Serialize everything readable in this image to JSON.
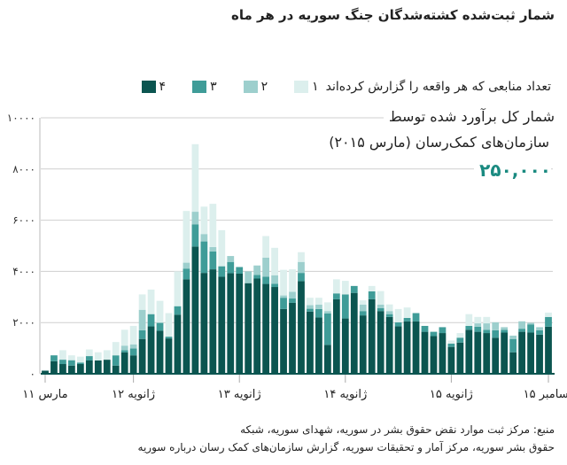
{
  "title": "شمار ثبت‌شده کشته‌شدگان جنگ سوریه در هر ماه",
  "legend": {
    "label": "تعداد منابعی که هر واقعه را گزارش کرده‌اند",
    "items": [
      "۱",
      "۲",
      "۳",
      "۴"
    ]
  },
  "annotation": {
    "line1": "شمار کل برآورد شده توسط",
    "line2": "سازمان‌های کمک‌رسان (مارس ۲۰۱۵)",
    "value": "۲۵۰,۰۰۰"
  },
  "source": {
    "line1": "منبع: مرکز ثبت موارد نقض حقوق بشر در سوریه، شهدای سوریه، شبکه",
    "line2": "حقوق بشر سوریه، مرکز آمار و تحقیقات سوریه، گزارش سازمان‌های کمک رسان درباره سوریه"
  },
  "colors": {
    "s4": "#0b5550",
    "s3": "#3f9c98",
    "s2": "#9dcfcd",
    "s1": "#dcefed",
    "grid": "#cfcfcf"
  },
  "chart_data": {
    "type": "bar",
    "stacked": true,
    "title": "شمار ثبت‌شده کشته‌شدگان جنگ سوریه در هر ماه",
    "ylim": [
      0,
      10000
    ],
    "yticks": [
      0,
      2000,
      4000,
      6000,
      8000,
      10000
    ],
    "ytick_labels": [
      "۰",
      "۲۰۰۰",
      "۴۰۰۰",
      "۶۰۰۰",
      "۸۰۰۰",
      "۱۰۰۰۰"
    ],
    "xticks": [
      {
        "index": 0,
        "label": "مارس ۱۱"
      },
      {
        "index": 10,
        "label": "ژانویه ۱۲"
      },
      {
        "index": 22,
        "label": "ژانویه ۱۳"
      },
      {
        "index": 34,
        "label": "ژانویه ۱۴"
      },
      {
        "index": 46,
        "label": "ژانویه ۱۵"
      },
      {
        "index": 57,
        "label": "دسامبر ۱۵"
      }
    ],
    "legend_position": "top",
    "series": [
      {
        "name": "۴",
        "values": [
          120,
          490,
          380,
          320,
          380,
          520,
          520,
          550,
          320,
          840,
          720,
          1360,
          1850,
          1680,
          1380,
          2310,
          3690,
          4970,
          3940,
          4080,
          3790,
          3930,
          3910,
          3540,
          3720,
          3510,
          3390,
          2530,
          2770,
          3620,
          2430,
          2200,
          1130,
          2910,
          2160,
          3160,
          2280,
          2910,
          2450,
          2220,
          1850,
          2050,
          2050,
          1640,
          1470,
          1590,
          1050,
          1220,
          1720,
          1640,
          1590,
          1410,
          1610,
          840,
          1640,
          1610,
          1530,
          1840
        ]
      },
      {
        "name": "۳",
        "values": [
          0,
          230,
          170,
          210,
          60,
          170,
          0,
          0,
          400,
          80,
          270,
          340,
          480,
          310,
          70,
          330,
          420,
          870,
          1230,
          700,
          410,
          440,
          260,
          0,
          140,
          280,
          130,
          440,
          170,
          320,
          110,
          330,
          1230,
          230,
          940,
          270,
          170,
          310,
          110,
          110,
          160,
          130,
          320,
          230,
          170,
          230,
          130,
          190,
          150,
          200,
          130,
          290,
          110,
          520,
          120,
          320,
          170,
          380
        ]
      },
      {
        "name": "۲",
        "values": [
          0,
          0,
          0,
          0,
          0,
          0,
          0,
          0,
          0,
          180,
          160,
          800,
          0,
          0,
          0,
          0,
          230,
          490,
          290,
          170,
          0,
          230,
          0,
          460,
          370,
          750,
          330,
          90,
          260,
          430,
          140,
          170,
          90,
          0,
          0,
          0,
          250,
          0,
          140,
          120,
          0,
          0,
          0,
          0,
          0,
          0,
          0,
          0,
          0,
          130,
          250,
          310,
          100,
          130,
          290,
          60,
          120,
          0
        ]
      },
      {
        "name": "۱",
        "values": [
          30,
          0,
          370,
          190,
          230,
          260,
          320,
          370,
          520,
          620,
          720,
          600,
          960,
          860,
          920,
          1360,
          2020,
          2640,
          1070,
          1690,
          1410,
          0,
          0,
          0,
          0,
          840,
          1070,
          1000,
          880,
          380,
          290,
          270,
          340,
          550,
          530,
          0,
          170,
          210,
          530,
          260,
          520,
          410,
          0,
          0,
          0,
          0,
          120,
          180,
          460,
          250,
          250,
          0,
          0,
          0,
          0,
          0,
          0,
          170
        ]
      }
    ]
  }
}
